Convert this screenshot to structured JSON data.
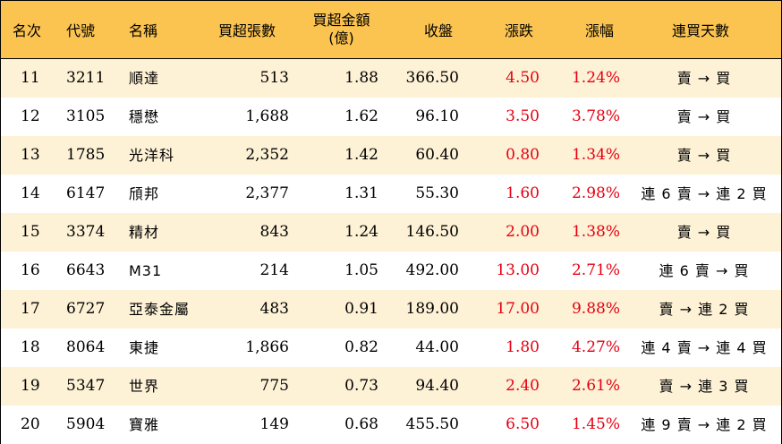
{
  "header": {
    "rank": "名次",
    "code": "代號",
    "name": "名稱",
    "shares": "買超張數",
    "amount_line1": "買超金額",
    "amount_line2": "(億)",
    "close": "收盤",
    "change": "漲跌",
    "change_pct": "漲幅",
    "streak": "連買天數"
  },
  "rows": [
    {
      "rank": "11",
      "code": "3211",
      "name": "順達",
      "shares": "513",
      "amount": "1.88",
      "close": "366.50",
      "change": "4.50",
      "pct": "1.24%",
      "streak": "賣 → 買"
    },
    {
      "rank": "12",
      "code": "3105",
      "name": "穩懋",
      "shares": "1,688",
      "amount": "1.62",
      "close": "96.10",
      "change": "3.50",
      "pct": "3.78%",
      "streak": "賣 → 買"
    },
    {
      "rank": "13",
      "code": "1785",
      "name": "光洋科",
      "shares": "2,352",
      "amount": "1.42",
      "close": "60.40",
      "change": "0.80",
      "pct": "1.34%",
      "streak": "賣 → 買"
    },
    {
      "rank": "14",
      "code": "6147",
      "name": "頎邦",
      "shares": "2,377",
      "amount": "1.31",
      "close": "55.30",
      "change": "1.60",
      "pct": "2.98%",
      "streak": "連 6 賣 → 連 2 買"
    },
    {
      "rank": "15",
      "code": "3374",
      "name": "精材",
      "shares": "843",
      "amount": "1.24",
      "close": "146.50",
      "change": "2.00",
      "pct": "1.38%",
      "streak": "賣 → 買"
    },
    {
      "rank": "16",
      "code": "6643",
      "name": "M31",
      "shares": "214",
      "amount": "1.05",
      "close": "492.00",
      "change": "13.00",
      "pct": "2.71%",
      "streak": "連 6 賣 → 買"
    },
    {
      "rank": "17",
      "code": "6727",
      "name": "亞泰金屬",
      "shares": "483",
      "amount": "0.91",
      "close": "189.00",
      "change": "17.00",
      "pct": "9.88%",
      "streak": "賣 → 連 2 買"
    },
    {
      "rank": "18",
      "code": "8064",
      "name": "東捷",
      "shares": "1,866",
      "amount": "0.82",
      "close": "44.00",
      "change": "1.80",
      "pct": "4.27%",
      "streak": "連 4 賣 → 連 4 買"
    },
    {
      "rank": "19",
      "code": "5347",
      "name": "世界",
      "shares": "775",
      "amount": "0.73",
      "close": "94.40",
      "change": "2.40",
      "pct": "2.61%",
      "streak": "賣 → 連 3 買"
    },
    {
      "rank": "20",
      "code": "5904",
      "name": "寶雅",
      "shares": "149",
      "amount": "0.68",
      "close": "455.50",
      "change": "6.50",
      "pct": "1.45%",
      "streak": "連 9 賣 → 連 2 買"
    }
  ],
  "colors": {
    "header_bg": "#fbc350",
    "stripe_bg": "#fdf1d6",
    "up_red": "#e60012"
  }
}
